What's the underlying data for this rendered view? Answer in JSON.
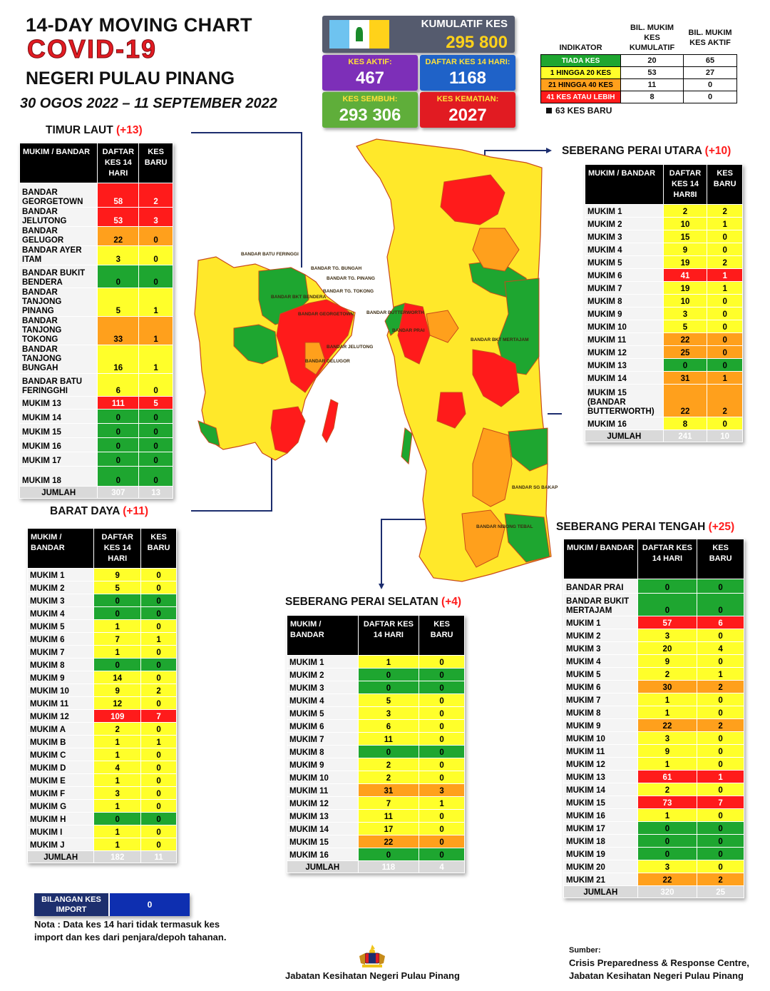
{
  "header": {
    "title_line1": "14-DAY MOVING CHART",
    "title_covid": "COVID-19",
    "state": "NEGERI PULAU PINANG",
    "date_range": "30 OGOS 2022 – 11 SEPTEMBER 2022"
  },
  "stats": {
    "cumulative_label": "KUMULATIF KES",
    "cumulative_value": "295 800",
    "active_label": "KES AKTIF:",
    "active_value": "467",
    "list14_label": "DAFTAR KES 14 HARI:",
    "list14_value": "1168",
    "recovered_label": "KES SEMBUH:",
    "recovered_value": "293 306",
    "death_label": "KES KEMATIAN:",
    "death_value": "2027"
  },
  "legend": {
    "head": [
      "INDIKATOR",
      "BIL. MUKIM KES KUMULATIF",
      "BIL. MUKIM KES AKTIF"
    ],
    "rows": [
      {
        "label": "TIADA KES",
        "color": "grn",
        "cum": "20",
        "act": "65"
      },
      {
        "label": "1 HINGGA 20 KES",
        "color": "yel",
        "cum": "53",
        "act": "27"
      },
      {
        "label": "21 HINGGA 40 KES",
        "color": "ora",
        "cum": "11",
        "act": "0"
      },
      {
        "label": "41 KES ATAU LEBIH",
        "color": "red",
        "cum": "8",
        "act": "0"
      }
    ],
    "new_cases": "63 KES BARU"
  },
  "colors": {
    "red": "#ff1b1b",
    "orange": "#ffa01c",
    "yellow": "#ffff2a",
    "green": "#1ea630",
    "navy": "#1c2d6e"
  },
  "tables": {
    "timur_laut": {
      "title": "TIMUR LAUT",
      "plus": "(+13)",
      "head": [
        "MUKIM / BANDAR",
        "DAFTAR KES 14 HARI",
        "KES BARU"
      ],
      "rows": [
        {
          "n": "BANDAR GEORGETOWN",
          "v": "58",
          "vc": "red",
          "b": "2",
          "bc": "red",
          "h": 34
        },
        {
          "n": "BANDAR JELUTONG",
          "v": "53",
          "vc": "red",
          "b": "3",
          "bc": "red",
          "h": 20
        },
        {
          "n": "BANDAR GELUGOR",
          "v": "22",
          "vc": "ora",
          "b": "0",
          "bc": "ora",
          "h": 20
        },
        {
          "n": "BANDAR AYER ITAM",
          "v": "3",
          "vc": "yel",
          "b": "0",
          "bc": "yel",
          "h": 20
        },
        {
          "n": "BANDAR BUKIT BENDERA",
          "v": "0",
          "vc": "grn",
          "b": "0",
          "bc": "grn",
          "h": 32
        },
        {
          "n": "BANDAR TANJONG PINANG",
          "v": "5",
          "vc": "yel",
          "b": "1",
          "bc": "yel",
          "h": 34
        },
        {
          "n": "BANDAR TANJONG TOKONG",
          "v": "33",
          "vc": "ora",
          "b": "1",
          "bc": "ora",
          "h": 33
        },
        {
          "n": "BANDAR TANJONG BUNGAH",
          "v": "16",
          "vc": "yel",
          "b": "1",
          "bc": "yel",
          "h": 32
        },
        {
          "n": "BANDAR BATU FERINGGHI",
          "v": "6",
          "vc": "yel",
          "b": "0",
          "bc": "yel",
          "h": 32
        },
        {
          "n": "MUKIM 13",
          "v": "111",
          "vc": "red",
          "b": "5",
          "bc": "red",
          "h": 18
        },
        {
          "n": "MUKIM 14",
          "v": "0",
          "vc": "grn",
          "b": "0",
          "bc": "grn",
          "h": 20
        },
        {
          "n": "MUKIM 15",
          "v": "0",
          "vc": "grn",
          "b": "0",
          "bc": "grn",
          "h": 20
        },
        {
          "n": "MUKIM 16",
          "v": "0",
          "vc": "grn",
          "b": "0",
          "bc": "grn",
          "h": 20
        },
        {
          "n": "MUKIM 17",
          "v": "0",
          "vc": "grn",
          "b": "0",
          "bc": "grn",
          "h": 20
        },
        {
          "n": "MUKIM 18",
          "v": "0",
          "vc": "grn",
          "b": "0",
          "bc": "grn",
          "h": 28
        }
      ],
      "total": {
        "n": "JUMLAH",
        "v": "307",
        "b": "13"
      }
    },
    "barat_daya": {
      "title": "BARAT DAYA",
      "plus": "(+11)",
      "head": [
        "MUKIM / BANDAR",
        "DAFTAR KES 14 HARI",
        "KES BARU"
      ],
      "rows": [
        {
          "n": "MUKIM 1",
          "v": "9",
          "vc": "yel",
          "b": "0",
          "bc": "yel"
        },
        {
          "n": "MUKIM 2",
          "v": "5",
          "vc": "yel",
          "b": "0",
          "bc": "yel"
        },
        {
          "n": "MUKIM 3",
          "v": "0",
          "vc": "grn",
          "b": "0",
          "bc": "grn"
        },
        {
          "n": "MUKIM 4",
          "v": "0",
          "vc": "grn",
          "b": "0",
          "bc": "grn"
        },
        {
          "n": "MUKIM 5",
          "v": "1",
          "vc": "yel",
          "b": "0",
          "bc": "yel"
        },
        {
          "n": "MUKIM 6",
          "v": "7",
          "vc": "yel",
          "b": "1",
          "bc": "yel"
        },
        {
          "n": "MUKIM 7",
          "v": "1",
          "vc": "yel",
          "b": "0",
          "bc": "yel"
        },
        {
          "n": "MUKIM 8",
          "v": "0",
          "vc": "grn",
          "b": "0",
          "bc": "grn"
        },
        {
          "n": "MUKIM 9",
          "v": "14",
          "vc": "yel",
          "b": "0",
          "bc": "yel"
        },
        {
          "n": "MUKIM 10",
          "v": "9",
          "vc": "yel",
          "b": "2",
          "bc": "yel"
        },
        {
          "n": "MUKIM 11",
          "v": "12",
          "vc": "yel",
          "b": "0",
          "bc": "yel"
        },
        {
          "n": "MUKIM 12",
          "v": "109",
          "vc": "red",
          "b": "7",
          "bc": "red"
        },
        {
          "n": "MUKIM A",
          "v": "2",
          "vc": "yel",
          "b": "0",
          "bc": "yel"
        },
        {
          "n": "MUKIM B",
          "v": "1",
          "vc": "yel",
          "b": "1",
          "bc": "yel"
        },
        {
          "n": "MUKIM C",
          "v": "1",
          "vc": "yel",
          "b": "0",
          "bc": "yel"
        },
        {
          "n": "MUKIM D",
          "v": "4",
          "vc": "yel",
          "b": "0",
          "bc": "yel"
        },
        {
          "n": "MUKIM E",
          "v": "1",
          "vc": "yel",
          "b": "0",
          "bc": "yel"
        },
        {
          "n": "MUKIM F",
          "v": "3",
          "vc": "yel",
          "b": "0",
          "bc": "yel"
        },
        {
          "n": "MUKIM G",
          "v": "1",
          "vc": "yel",
          "b": "0",
          "bc": "yel"
        },
        {
          "n": "MUKIM H",
          "v": "0",
          "vc": "grn",
          "b": "0",
          "bc": "grn"
        },
        {
          "n": "MUKIM I",
          "v": "1",
          "vc": "yel",
          "b": "0",
          "bc": "yel"
        },
        {
          "n": "MUKIM J",
          "v": "1",
          "vc": "yel",
          "b": "0",
          "bc": "yel"
        }
      ],
      "total": {
        "n": "JUMLAH",
        "v": "182",
        "b": "11"
      }
    },
    "spu": {
      "title": "SEBERANG PERAI UTARA",
      "plus": "(+10)",
      "head": [
        "MUKIM / BANDAR",
        "DAFTAR KES 14 HAR8I",
        "KES BARU"
      ],
      "rows": [
        {
          "n": "MUKIM 1",
          "v": "2",
          "vc": "yel",
          "b": "2",
          "bc": "yel"
        },
        {
          "n": "MUKIM 2",
          "v": "10",
          "vc": "yel",
          "b": "1",
          "bc": "yel"
        },
        {
          "n": "MUKIM 3",
          "v": "15",
          "vc": "yel",
          "b": "0",
          "bc": "yel"
        },
        {
          "n": "MUKIM 4",
          "v": "9",
          "vc": "yel",
          "b": "0",
          "bc": "yel"
        },
        {
          "n": "MUKIM 5",
          "v": "19",
          "vc": "yel",
          "b": "2",
          "bc": "yel"
        },
        {
          "n": "MUKIM 6",
          "v": "41",
          "vc": "red",
          "b": "1",
          "bc": "red"
        },
        {
          "n": "MUKIM 7",
          "v": "19",
          "vc": "yel",
          "b": "1",
          "bc": "yel"
        },
        {
          "n": "MUKIM 8",
          "v": "10",
          "vc": "yel",
          "b": "0",
          "bc": "yel"
        },
        {
          "n": "MUKIM 9",
          "v": "3",
          "vc": "yel",
          "b": "0",
          "bc": "yel"
        },
        {
          "n": "MUKIM 10",
          "v": "5",
          "vc": "yel",
          "b": "0",
          "bc": "yel"
        },
        {
          "n": "MUKIM 11",
          "v": "22",
          "vc": "ora",
          "b": "0",
          "bc": "ora"
        },
        {
          "n": "MUKIM 12",
          "v": "25",
          "vc": "ora",
          "b": "0",
          "bc": "ora"
        },
        {
          "n": "MUKIM 13",
          "v": "0",
          "vc": "grn",
          "b": "0",
          "bc": "grn"
        },
        {
          "n": "MUKIM 14",
          "v": "31",
          "vc": "ora",
          "b": "1",
          "bc": "ora"
        },
        {
          "n": "MUKIM 15 (BANDAR BUTTERWORTH)",
          "v": "22",
          "vc": "ora",
          "b": "2",
          "bc": "ora",
          "h": 46
        },
        {
          "n": "MUKIM 16",
          "v": "8",
          "vc": "yel",
          "b": "0",
          "bc": "yel"
        }
      ],
      "total": {
        "n": "JUMLAH",
        "v": "241",
        "b": "10"
      }
    },
    "sps": {
      "title": "SEBERANG PERAI SELATAN",
      "plus": "(+4)",
      "head": [
        "MUKIM / BANDAR",
        "DAFTAR KES 14 HARI",
        "KES BARU"
      ],
      "rows": [
        {
          "n": "MUKIM 1",
          "v": "1",
          "vc": "yel",
          "b": "0",
          "bc": "yel"
        },
        {
          "n": "MUKIM 2",
          "v": "0",
          "vc": "grn",
          "b": "0",
          "bc": "grn"
        },
        {
          "n": "MUKIM 3",
          "v": "0",
          "vc": "grn",
          "b": "0",
          "bc": "grn"
        },
        {
          "n": "MUKIM 4",
          "v": "5",
          "vc": "yel",
          "b": "0",
          "bc": "yel"
        },
        {
          "n": "MUKIM 5",
          "v": "3",
          "vc": "yel",
          "b": "0",
          "bc": "yel"
        },
        {
          "n": "MUKIM 6",
          "v": "6",
          "vc": "yel",
          "b": "0",
          "bc": "yel"
        },
        {
          "n": "MUKIM 7",
          "v": "11",
          "vc": "yel",
          "b": "0",
          "bc": "yel"
        },
        {
          "n": "MUKIM 8",
          "v": "0",
          "vc": "grn",
          "b": "0",
          "bc": "grn"
        },
        {
          "n": "MUKIM 9",
          "v": "2",
          "vc": "yel",
          "b": "0",
          "bc": "yel"
        },
        {
          "n": "MUKIM 10",
          "v": "2",
          "vc": "yel",
          "b": "0",
          "bc": "yel"
        },
        {
          "n": "MUKIM 11",
          "v": "31",
          "vc": "ora",
          "b": "3",
          "bc": "ora"
        },
        {
          "n": "MUKIM 12",
          "v": "7",
          "vc": "yel",
          "b": "1",
          "bc": "yel"
        },
        {
          "n": "MUKIM 13",
          "v": "11",
          "vc": "yel",
          "b": "0",
          "bc": "yel"
        },
        {
          "n": "MUKIM 14",
          "v": "17",
          "vc": "yel",
          "b": "0",
          "bc": "yel"
        },
        {
          "n": "MUKIM 15",
          "v": "22",
          "vc": "ora",
          "b": "0",
          "bc": "ora"
        },
        {
          "n": "MUKIM 16",
          "v": "0",
          "vc": "grn",
          "b": "0",
          "bc": "grn"
        }
      ],
      "total": {
        "n": "JUMLAH",
        "v": "118",
        "b": "4"
      }
    },
    "spt": {
      "title": "SEBERANG PERAI TENGAH",
      "plus": "(+25)",
      "head": [
        "MUKIM / BANDAR",
        "DAFTAR KES 14 HARI",
        "KES BARU"
      ],
      "rows": [
        {
          "n": "BANDAR PRAI",
          "v": "0",
          "vc": "grn",
          "b": "0",
          "bc": "grn",
          "h": 20
        },
        {
          "n": "BANDAR BUKIT MERTAJAM",
          "v": "0",
          "vc": "grn",
          "b": "0",
          "bc": "grn",
          "h": 32
        },
        {
          "n": "MUKIM 1",
          "v": "57",
          "vc": "red",
          "b": "6",
          "bc": "red"
        },
        {
          "n": "MUKIM 2",
          "v": "3",
          "vc": "yel",
          "b": "0",
          "bc": "yel"
        },
        {
          "n": "MUKIM 3",
          "v": "20",
          "vc": "yel",
          "b": "4",
          "bc": "yel"
        },
        {
          "n": "MUKIM 4",
          "v": "9",
          "vc": "yel",
          "b": "0",
          "bc": "yel"
        },
        {
          "n": "MUKIM 5",
          "v": "2",
          "vc": "yel",
          "b": "1",
          "bc": "yel"
        },
        {
          "n": "MUKIM 6",
          "v": "30",
          "vc": "ora",
          "b": "2",
          "bc": "ora"
        },
        {
          "n": "MUKIM 7",
          "v": "1",
          "vc": "yel",
          "b": "0",
          "bc": "yel"
        },
        {
          "n": "MUKIM 8",
          "v": "1",
          "vc": "yel",
          "b": "0",
          "bc": "yel"
        },
        {
          "n": "MUKIM 9",
          "v": "22",
          "vc": "ora",
          "b": "2",
          "bc": "ora"
        },
        {
          "n": "MUKIM 10",
          "v": "3",
          "vc": "yel",
          "b": "0",
          "bc": "yel"
        },
        {
          "n": "MUKIM 11",
          "v": "9",
          "vc": "yel",
          "b": "0",
          "bc": "yel"
        },
        {
          "n": "MUKIM 12",
          "v": "1",
          "vc": "yel",
          "b": "0",
          "bc": "yel"
        },
        {
          "n": "MUKIM 13",
          "v": "61",
          "vc": "red",
          "b": "1",
          "bc": "red"
        },
        {
          "n": "MUKIM 14",
          "v": "2",
          "vc": "yel",
          "b": "0",
          "bc": "yel"
        },
        {
          "n": "MUKIM 15",
          "v": "73",
          "vc": "red",
          "b": "7",
          "bc": "red"
        },
        {
          "n": "MUKIM 16",
          "v": "1",
          "vc": "yel",
          "b": "0",
          "bc": "yel"
        },
        {
          "n": "MUKIM 17",
          "v": "0",
          "vc": "grn",
          "b": "0",
          "bc": "grn"
        },
        {
          "n": "MUKIM 18",
          "v": "0",
          "vc": "grn",
          "b": "0",
          "bc": "grn"
        },
        {
          "n": "MUKIM 19",
          "v": "0",
          "vc": "grn",
          "b": "0",
          "bc": "grn"
        },
        {
          "n": "MUKIM 20",
          "v": "3",
          "vc": "yel",
          "b": "0",
          "bc": "yel"
        },
        {
          "n": "MUKIM 21",
          "v": "22",
          "vc": "ora",
          "b": "2",
          "bc": "ora"
        }
      ],
      "total": {
        "n": "JUMLAH",
        "v": "320",
        "b": "25"
      }
    }
  },
  "import": {
    "label": "BILANGAN KES IMPORT",
    "value": "0"
  },
  "note": "Nota : Data kes 14 hari tidak termasuk kes import dan kes dari penjara/depoh tahanan.",
  "footer": {
    "org": "Jabatan Kesihatan Negeri Pulau Pinang",
    "source_label": "Sumber:",
    "source_line1": "Crisis Preparedness & Response Centre,",
    "source_line2": "Jabatan Kesihatan Negeri Pulau Pinang"
  },
  "map": {
    "labels": [
      "BANDAR BATU FERINGGI",
      "BANDAR TG. BUNGAH",
      "BANDAR TG. PINANG",
      "BANDAR TG. TOKONG",
      "BANDAR JELUTONG",
      "BANDAR GEORGETOWN",
      "BANDAR GELUGOR",
      "BANDAR BKT BENDERA",
      "BANDAR BUTTERWORTH",
      "BANDAR PRAI",
      "BANDAR BKT MERTAJAM",
      "BANDAR SG BAKAP",
      "BANDAR NIBONG TEBAL"
    ]
  }
}
